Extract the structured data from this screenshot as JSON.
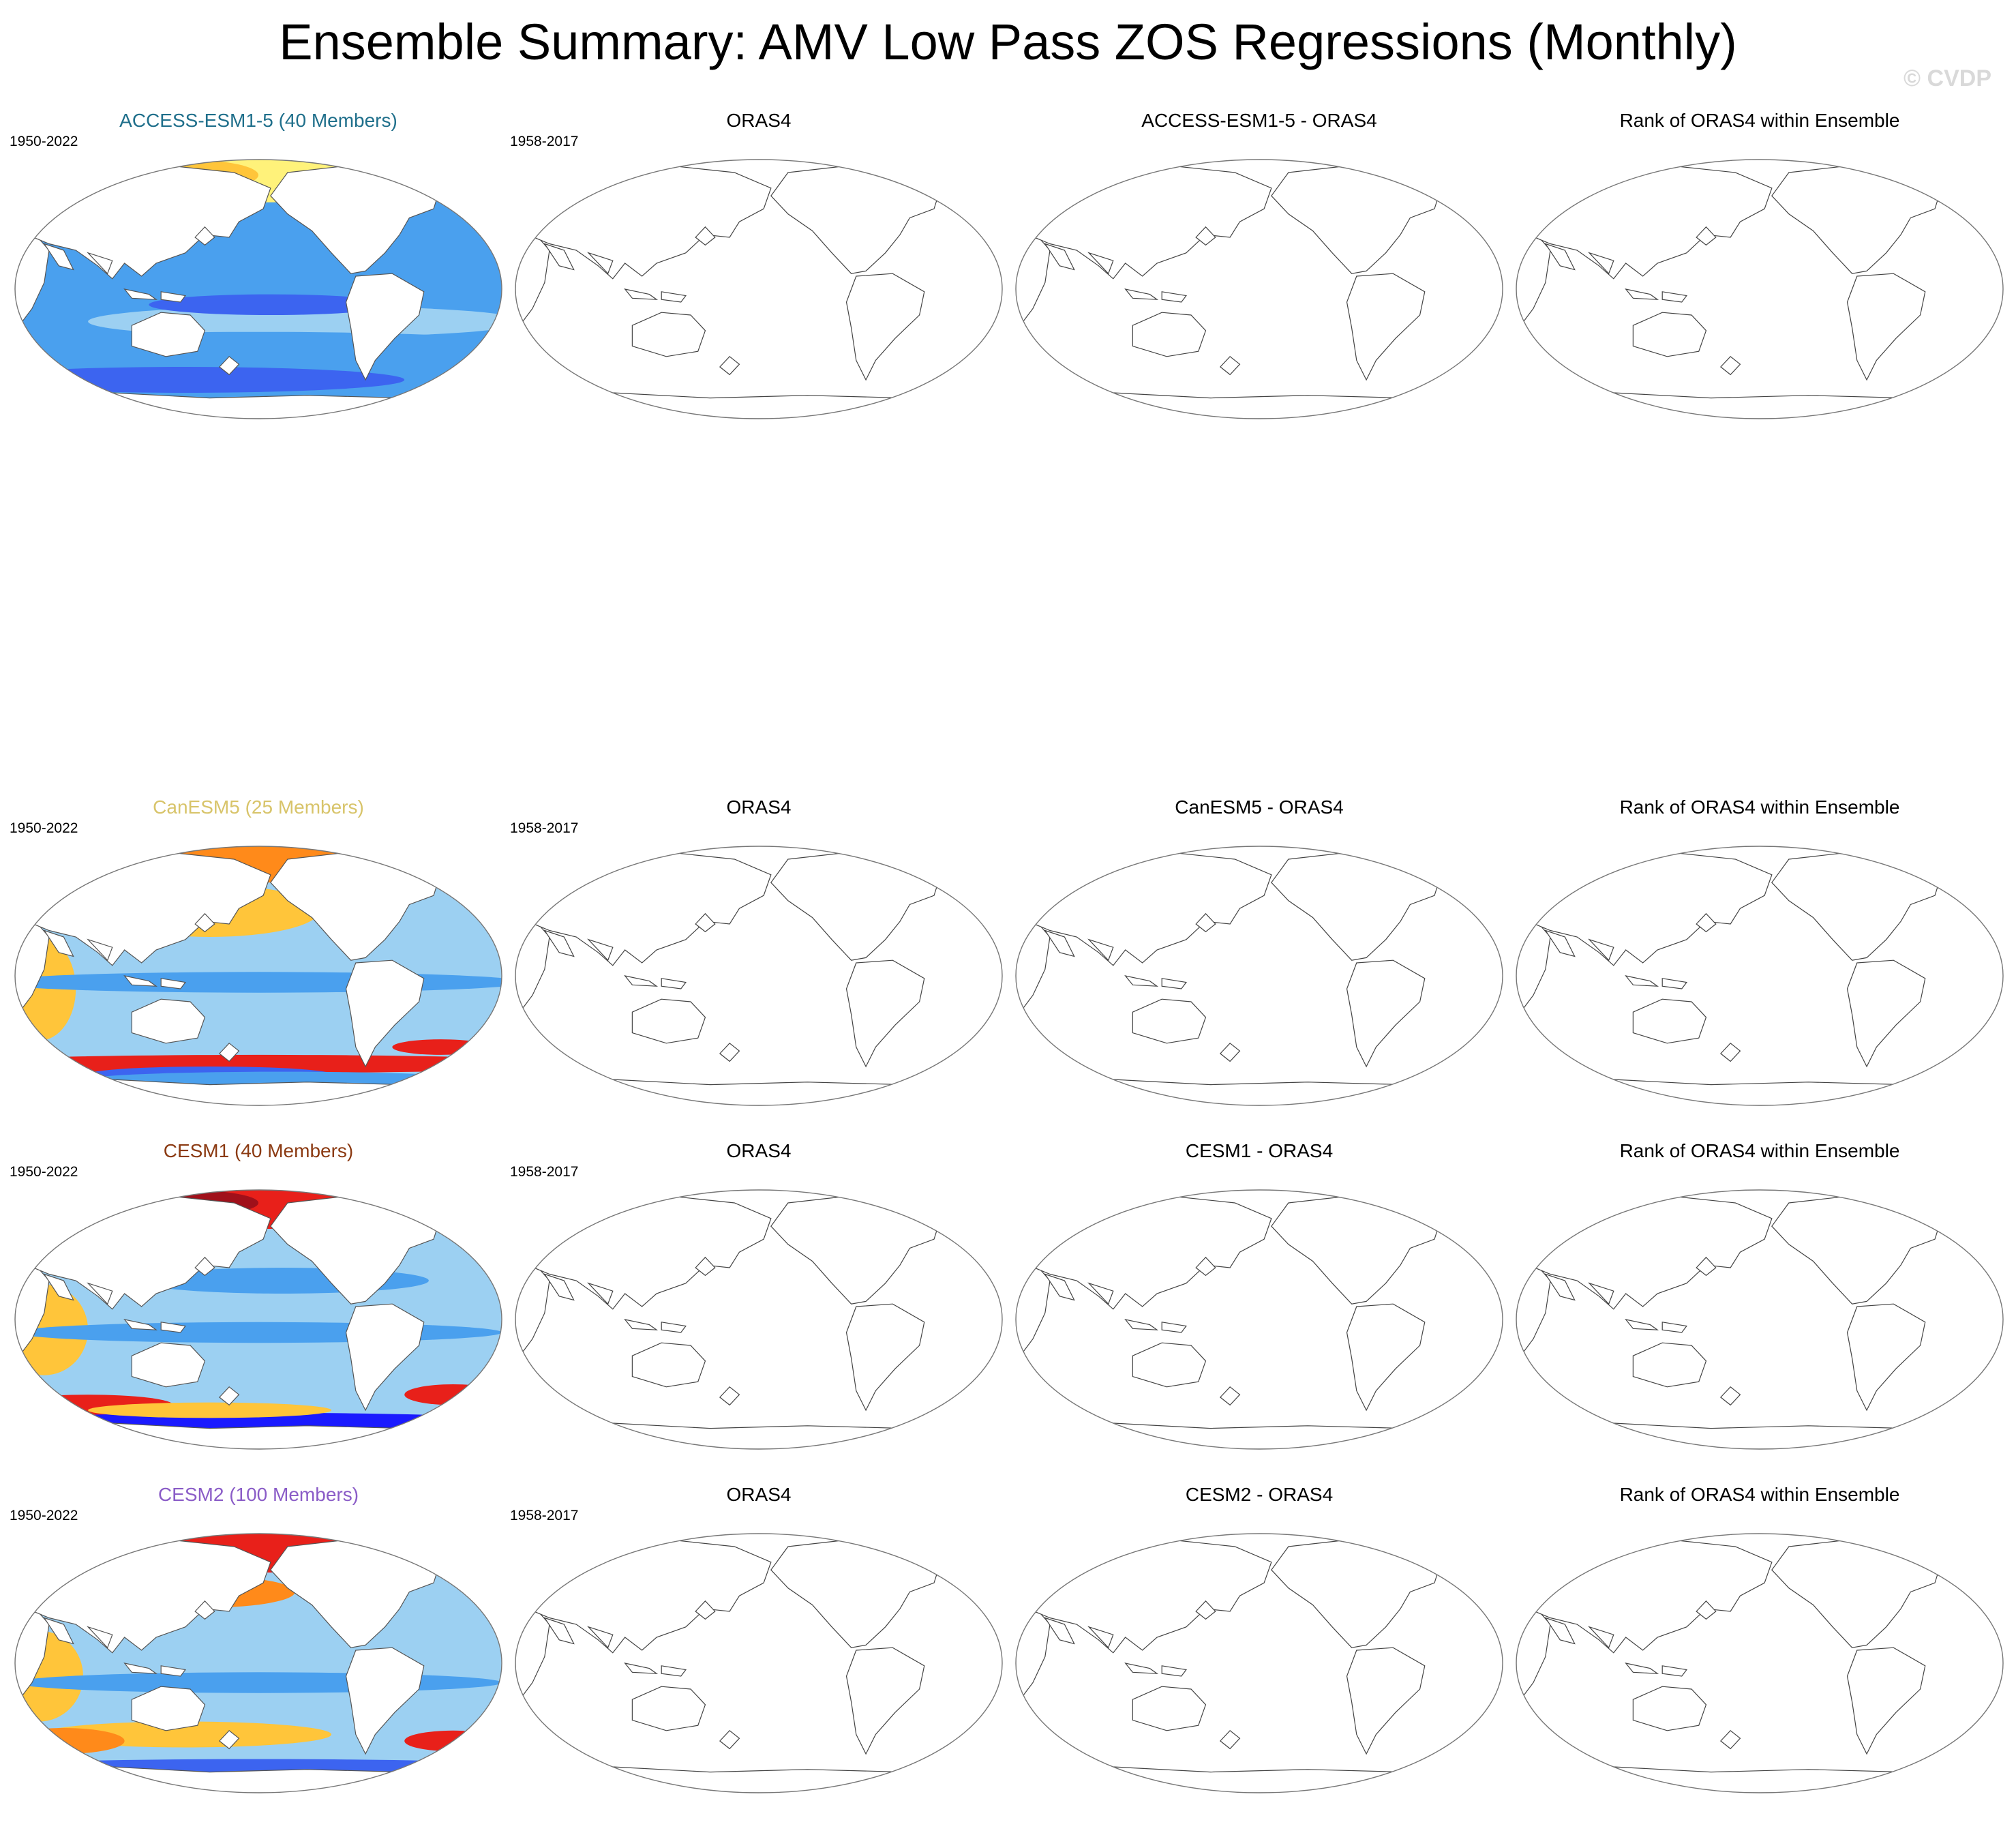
{
  "figure": {
    "title": "Ensemble Summary: AMV Low Pass ZOS Regressions (Monthly)",
    "watermark": "© CVDP"
  },
  "rows": [
    {
      "model_title": "ACCESS-ESM1-5 (40 Members)",
      "model_color": "#1f6f8b",
      "model_years": "1950-2022",
      "obs_title": "ORAS4",
      "obs_years": "1958-2017",
      "diff_title": "ACCESS-ESM1-5 - ORAS4",
      "rank_title": "Rank of ORAS4 within Ensemble"
    },
    {
      "model_title": "CanESM5 (25 Members)",
      "model_color": "#d8c46a",
      "model_years": "1950-2022",
      "obs_title": "ORAS4",
      "obs_years": "1958-2017",
      "diff_title": "CanESM5 - ORAS4",
      "rank_title": "Rank of ORAS4 within Ensemble"
    },
    {
      "model_title": "CESM1 (40 Members)",
      "model_color": "#8b3a12",
      "model_years": "1950-2022",
      "obs_title": "ORAS4",
      "obs_years": "1958-2017",
      "diff_title": "CESM1 - ORAS4",
      "rank_title": "Rank of ORAS4 within Ensemble"
    },
    {
      "model_title": "CESM2 (100 Members)",
      "model_color": "#8a5cc7",
      "model_years": "1950-2022",
      "obs_title": "ORAS4",
      "obs_years": "1958-2017",
      "diff_title": "CESM2 - ORAS4",
      "rank_title": "Rank of ORAS4 within Ensemble"
    }
  ],
  "chart_data": {
    "type": "heatmap",
    "projection": "Robinson, Pacific-centered",
    "colormap": [
      "#1a1aff",
      "#3c64f0",
      "#4aa0ee",
      "#9cd0f2",
      "#fff27a",
      "#ffc53a",
      "#ff8a1a",
      "#e8201a",
      "#a0101a"
    ],
    "panels_with_fields": [
      "ACCESS-ESM1-5 (40 Members)",
      "CanESM5 (25 Members)",
      "CESM1 (40 Members)",
      "CESM2 (100 Members)"
    ],
    "empty_panels": [
      "ORAS4",
      "Model - ORAS4",
      "Rank of ORAS4 within Ensemble"
    ]
  }
}
